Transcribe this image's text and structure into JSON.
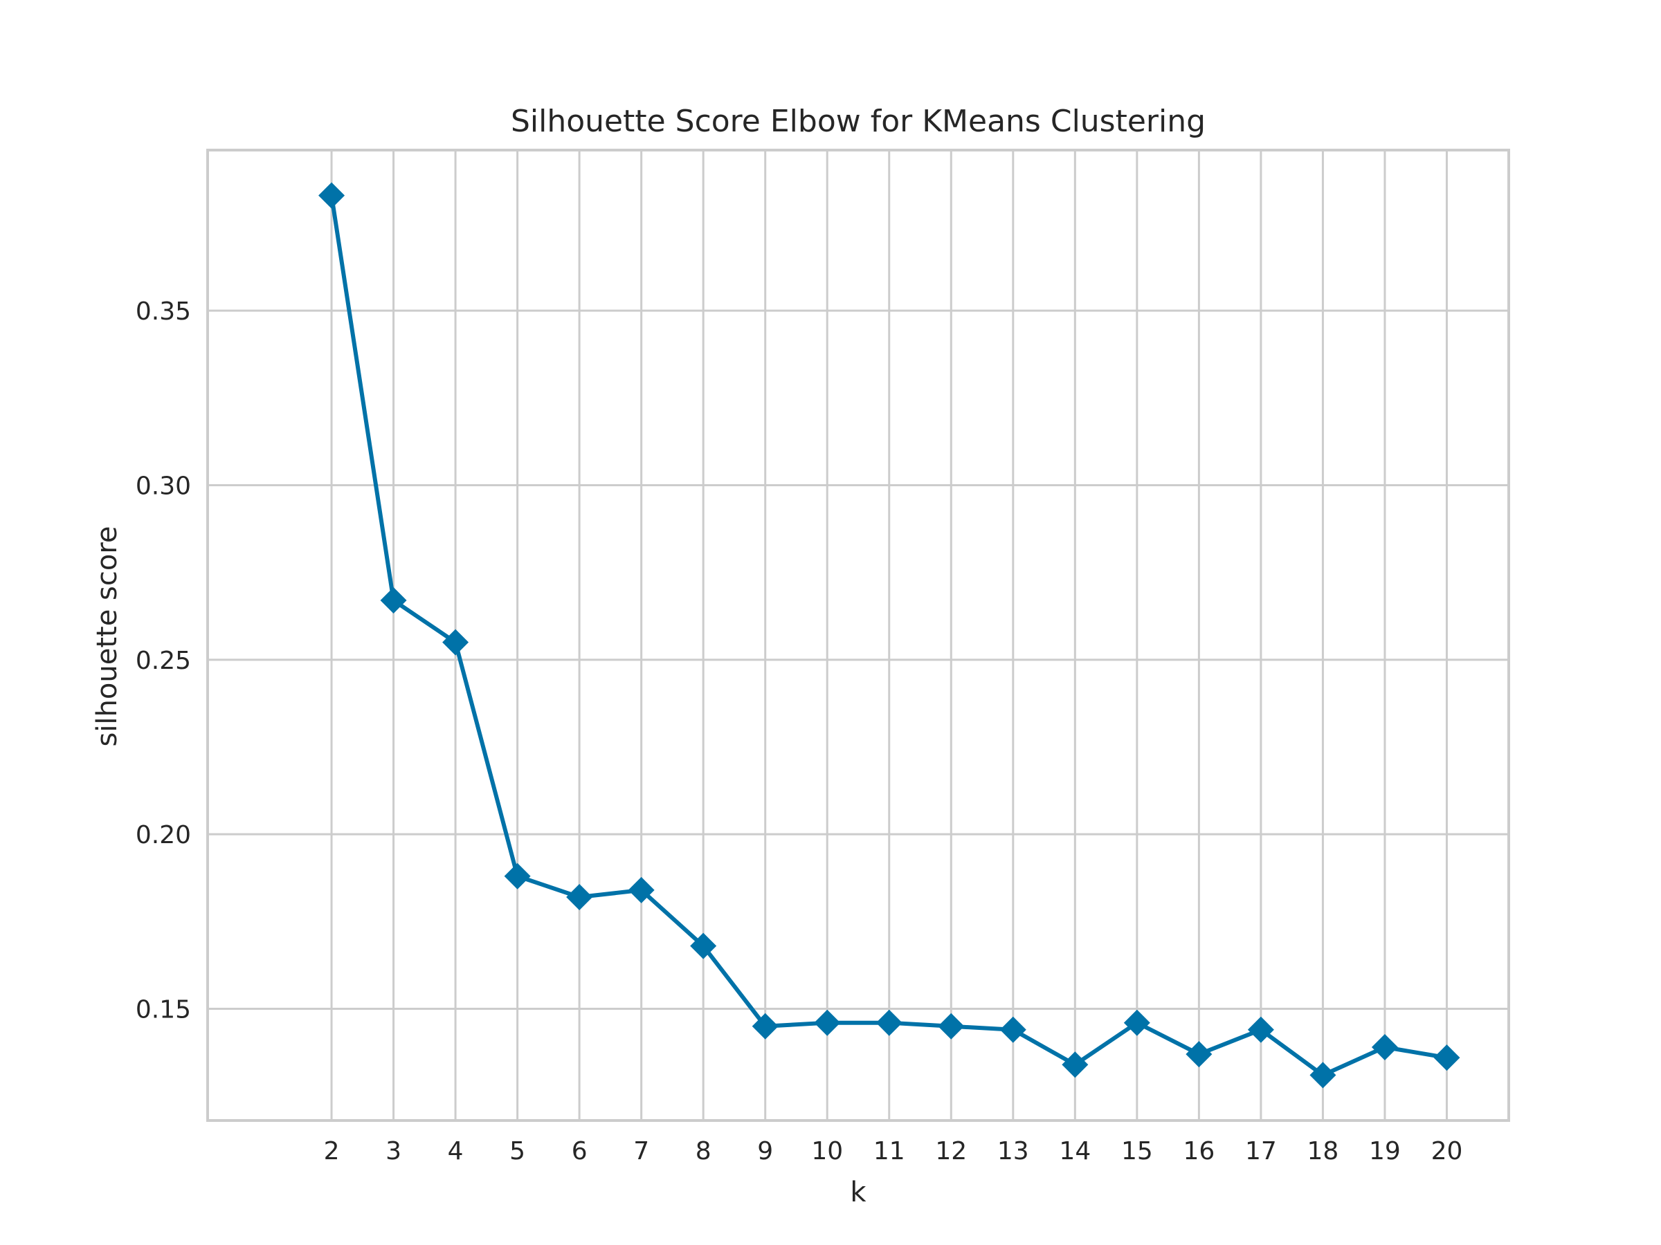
{
  "chart_data": {
    "type": "line",
    "title": "Silhouette Score Elbow for KMeans Clustering",
    "xlabel": "k",
    "ylabel": "silhouette score",
    "x": [
      2,
      3,
      4,
      5,
      6,
      7,
      8,
      9,
      10,
      11,
      12,
      13,
      14,
      15,
      16,
      17,
      18,
      19,
      20
    ],
    "series": [
      {
        "values": [
          0.383,
          0.267,
          0.255,
          0.188,
          0.182,
          0.184,
          0.168,
          0.145,
          0.146,
          0.146,
          0.145,
          0.144,
          0.134,
          0.146,
          0.137,
          0.144,
          0.131,
          0.139,
          0.136
        ],
        "color": "#0072a8",
        "marker": "diamond"
      }
    ],
    "xticks": [
      "2",
      "3",
      "4",
      "5",
      "6",
      "7",
      "8",
      "9",
      "10",
      "11",
      "12",
      "13",
      "14",
      "15",
      "16",
      "17",
      "18",
      "19",
      "20"
    ],
    "yticks": [
      "0.15",
      "0.20",
      "0.25",
      "0.30",
      "0.35"
    ],
    "ytick_values": [
      0.15,
      0.2,
      0.25,
      0.3,
      0.35
    ],
    "xlim": [
      0,
      21
    ],
    "ylim": [
      0.118,
      0.396
    ],
    "grid": true,
    "legend": "none"
  }
}
